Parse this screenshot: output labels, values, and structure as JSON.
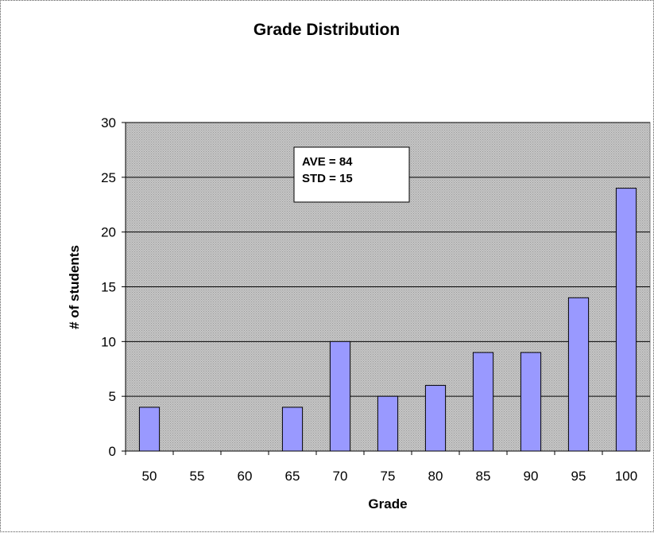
{
  "chart_data": {
    "type": "bar",
    "title": "Grade Distribution",
    "xlabel": "Grade",
    "ylabel": "# of students",
    "categories": [
      "50",
      "55",
      "60",
      "65",
      "70",
      "75",
      "80",
      "85",
      "90",
      "95",
      "100"
    ],
    "values": [
      4,
      0,
      0,
      4,
      10,
      5,
      6,
      9,
      9,
      14,
      24
    ],
    "ylim": [
      0,
      30
    ],
    "yticks": [
      "0",
      "5",
      "10",
      "15",
      "20",
      "25",
      "30"
    ],
    "grid": true,
    "legend": "none",
    "annotation": [
      "AVE = 84",
      "STD = 15"
    ],
    "colors": {
      "bar_fill": "#9999ff",
      "plot_background": "#c0c0c0",
      "gridline": "#000000"
    }
  }
}
